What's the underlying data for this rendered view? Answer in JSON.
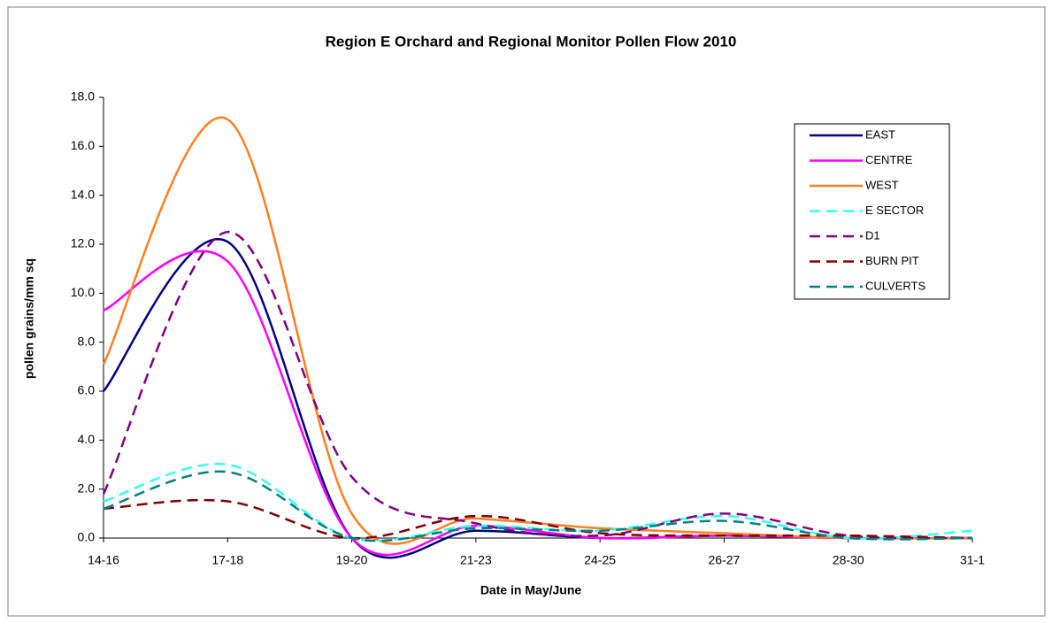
{
  "chart_data": {
    "type": "line",
    "title": "Region E Orchard and Regional Monitor Pollen Flow 2010",
    "x_label": "Date in May/June",
    "y_label": "pollen grains/mm sq",
    "categories": [
      "14-16",
      "17-18",
      "19-20",
      "21-23",
      "24-25",
      "26-27",
      "28-30",
      "31-1"
    ],
    "smooth": true,
    "legend": "upper right",
    "ylim": [
      0,
      18
    ],
    "yticks": [
      {
        "value": 0,
        "label": "0.0"
      },
      {
        "value": 2,
        "label": "2.0"
      },
      {
        "value": 4,
        "label": "4.0"
      },
      {
        "value": 6,
        "label": "6.0"
      },
      {
        "value": 8,
        "label": "8.0"
      },
      {
        "value": 10,
        "label": "10.0"
      },
      {
        "value": 12,
        "label": "12.0"
      },
      {
        "value": 14,
        "label": "14.0"
      },
      {
        "value": 16,
        "label": "16.0"
      },
      {
        "value": 18,
        "label": "18.0"
      }
    ],
    "series": [
      {
        "name": "EAST",
        "color": "#000080",
        "dashed": false,
        "values": [
          6.0,
          12.1,
          0.0,
          0.3,
          0.0,
          0.1,
          0.0,
          0.0
        ]
      },
      {
        "name": "CENTRE",
        "color": "#ff00ff",
        "dashed": false,
        "values": [
          9.3,
          11.3,
          0.0,
          0.5,
          0.0,
          0.1,
          0.0,
          0.0
        ]
      },
      {
        "name": "WEST",
        "color": "#ff7f1f",
        "dashed": false,
        "values": [
          7.1,
          17.1,
          1.0,
          0.8,
          0.4,
          0.2,
          0.0,
          0.0
        ]
      },
      {
        "name": "E SECTOR",
        "color": "#33ffff",
        "dashed": true,
        "values": [
          1.5,
          3.0,
          0.0,
          0.5,
          0.3,
          0.9,
          0.0,
          0.3
        ]
      },
      {
        "name": "D1",
        "color": "#800080",
        "dashed": true,
        "values": [
          1.8,
          12.5,
          2.5,
          0.6,
          0.1,
          1.0,
          0.1,
          0.0
        ]
      },
      {
        "name": "BURN PIT",
        "color": "#800000",
        "dashed": true,
        "values": [
          1.2,
          1.5,
          0.0,
          0.9,
          0.2,
          0.1,
          0.1,
          0.0
        ]
      },
      {
        "name": "CULVERTS",
        "color": "#008080",
        "dashed": true,
        "values": [
          1.2,
          2.7,
          0.0,
          0.4,
          0.3,
          0.7,
          0.0,
          0.0
        ]
      }
    ]
  }
}
